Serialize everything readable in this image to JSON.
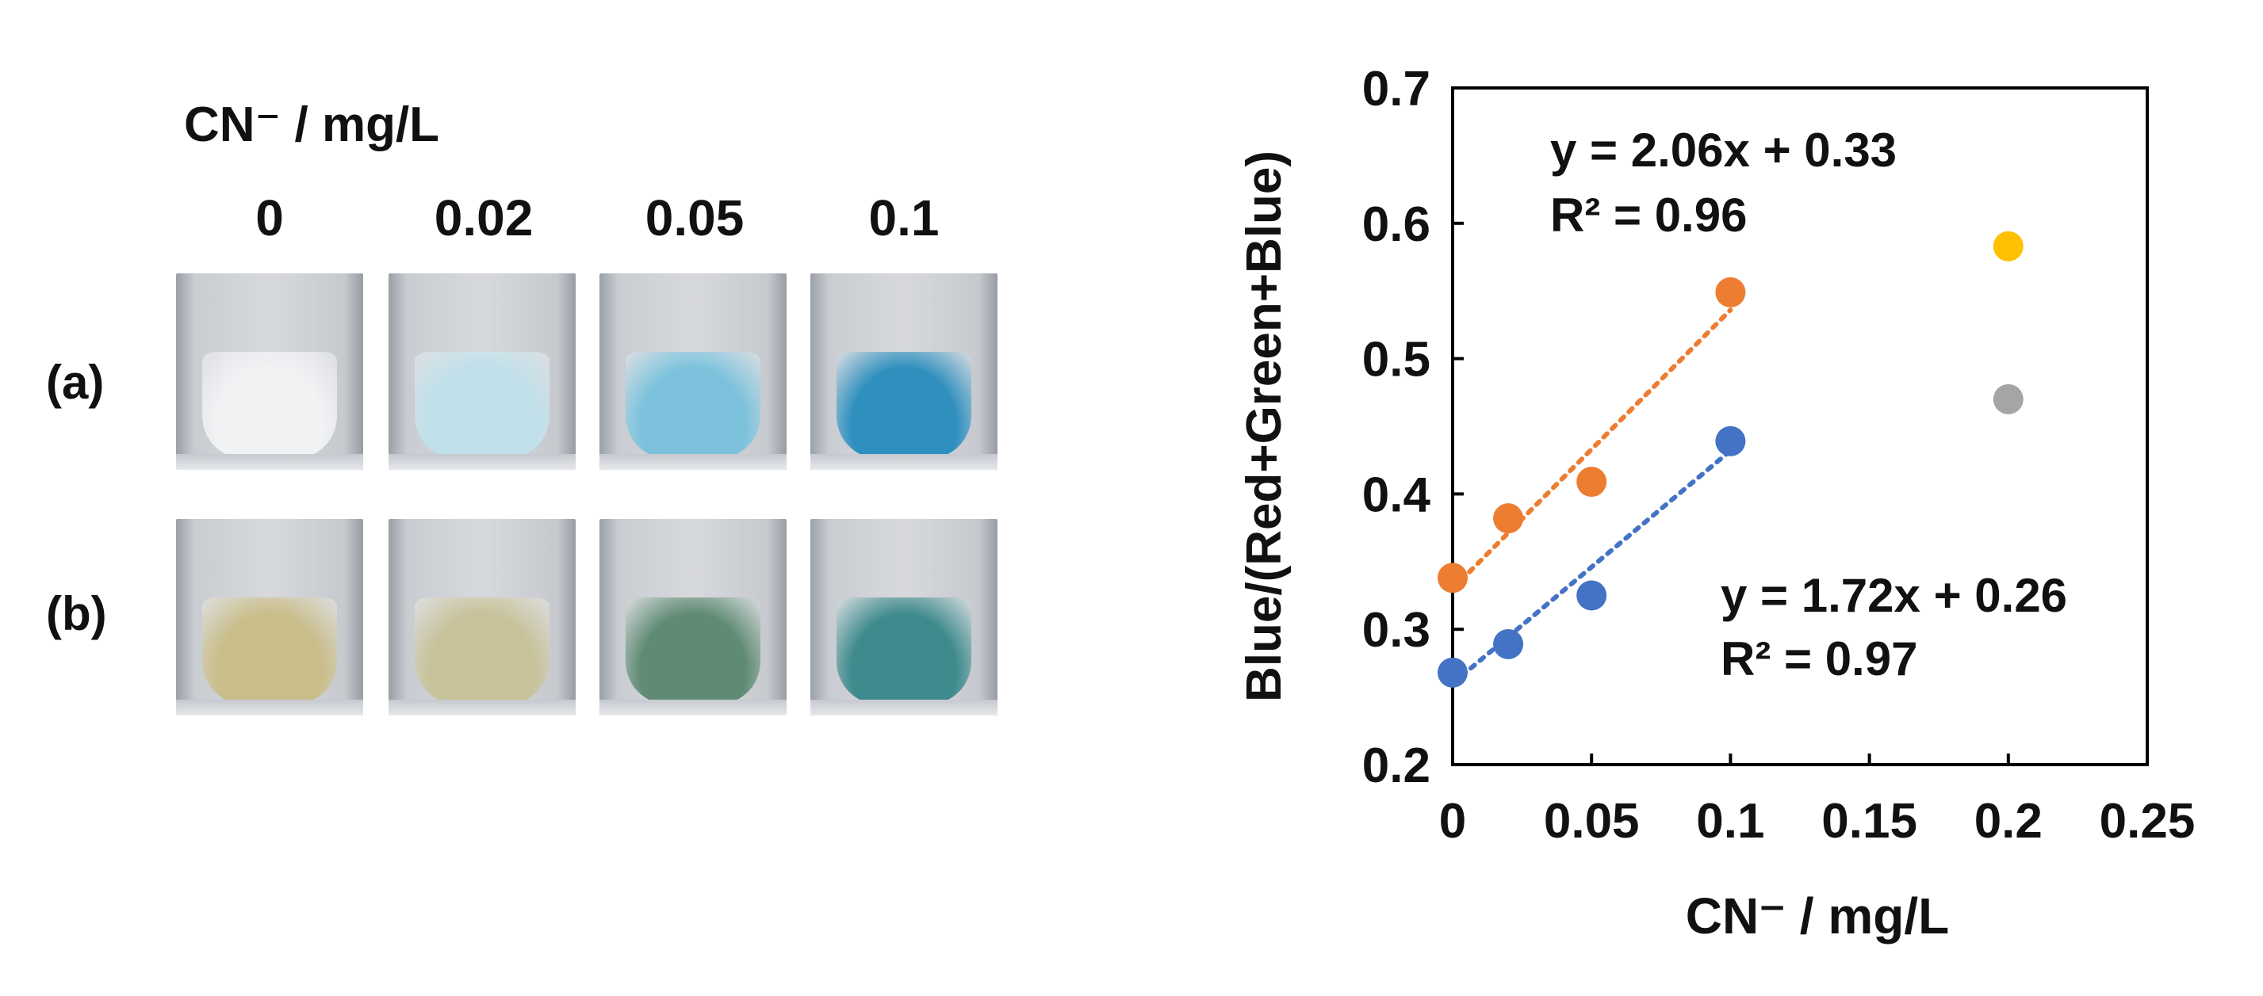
{
  "photo_panel": {
    "header": "CN⁻ / mg/L",
    "concentrations": [
      "0",
      "0.02",
      "0.05",
      "0.1"
    ],
    "rows": [
      {
        "label": "(a)",
        "colors": [
          "#f1f2f4",
          "#bfe0ea",
          "#7cc2dc",
          "#2f8fbe"
        ]
      },
      {
        "label": "(b)",
        "colors": [
          "#c9bd8a",
          "#c7c29a",
          "#5f8a73",
          "#3e8a8c"
        ]
      }
    ]
  },
  "chart_data": {
    "type": "scatter",
    "xlabel": "CN⁻ / mg/L",
    "ylabel": "Blue/(Red+Green+Blue)",
    "xlim": [
      0,
      0.25
    ],
    "ylim": [
      0.2,
      0.7
    ],
    "xticks": [
      "0",
      "0.05",
      "0.1",
      "0.15",
      "0.2",
      "0.25"
    ],
    "yticks": [
      "0.2",
      "0.3",
      "0.4",
      "0.5",
      "0.6",
      "0.7"
    ],
    "series": [
      {
        "color": "#ed7d31",
        "points": [
          [
            0,
            0.338
          ],
          [
            0.02,
            0.382
          ],
          [
            0.05,
            0.409
          ],
          [
            0.1,
            0.549
          ]
        ]
      },
      {
        "color": "#4472c4",
        "points": [
          [
            0,
            0.268
          ],
          [
            0.02,
            0.289
          ],
          [
            0.05,
            0.325
          ],
          [
            0.1,
            0.439
          ]
        ]
      },
      {
        "color": "#ffc000",
        "points": [
          [
            0.2,
            0.583
          ]
        ]
      },
      {
        "color": "#a5a5a5",
        "points": [
          [
            0.2,
            0.47
          ]
        ]
      }
    ],
    "trendlines": [
      {
        "color": "#ed7d31",
        "slope": 2.06,
        "intercept": 0.33,
        "x_range": [
          0,
          0.1
        ]
      },
      {
        "color": "#4472c4",
        "slope": 1.72,
        "intercept": 0.26,
        "x_range": [
          0,
          0.1
        ]
      }
    ],
    "annotations": [
      {
        "equation": "y = 2.06x + 0.33",
        "r2": "R² = 0.96",
        "placement": "upper-left"
      },
      {
        "equation": "y = 1.72x + 0.26",
        "r2": "R² = 0.97",
        "placement": "lower-right"
      }
    ],
    "grid": false,
    "legend": "none"
  }
}
